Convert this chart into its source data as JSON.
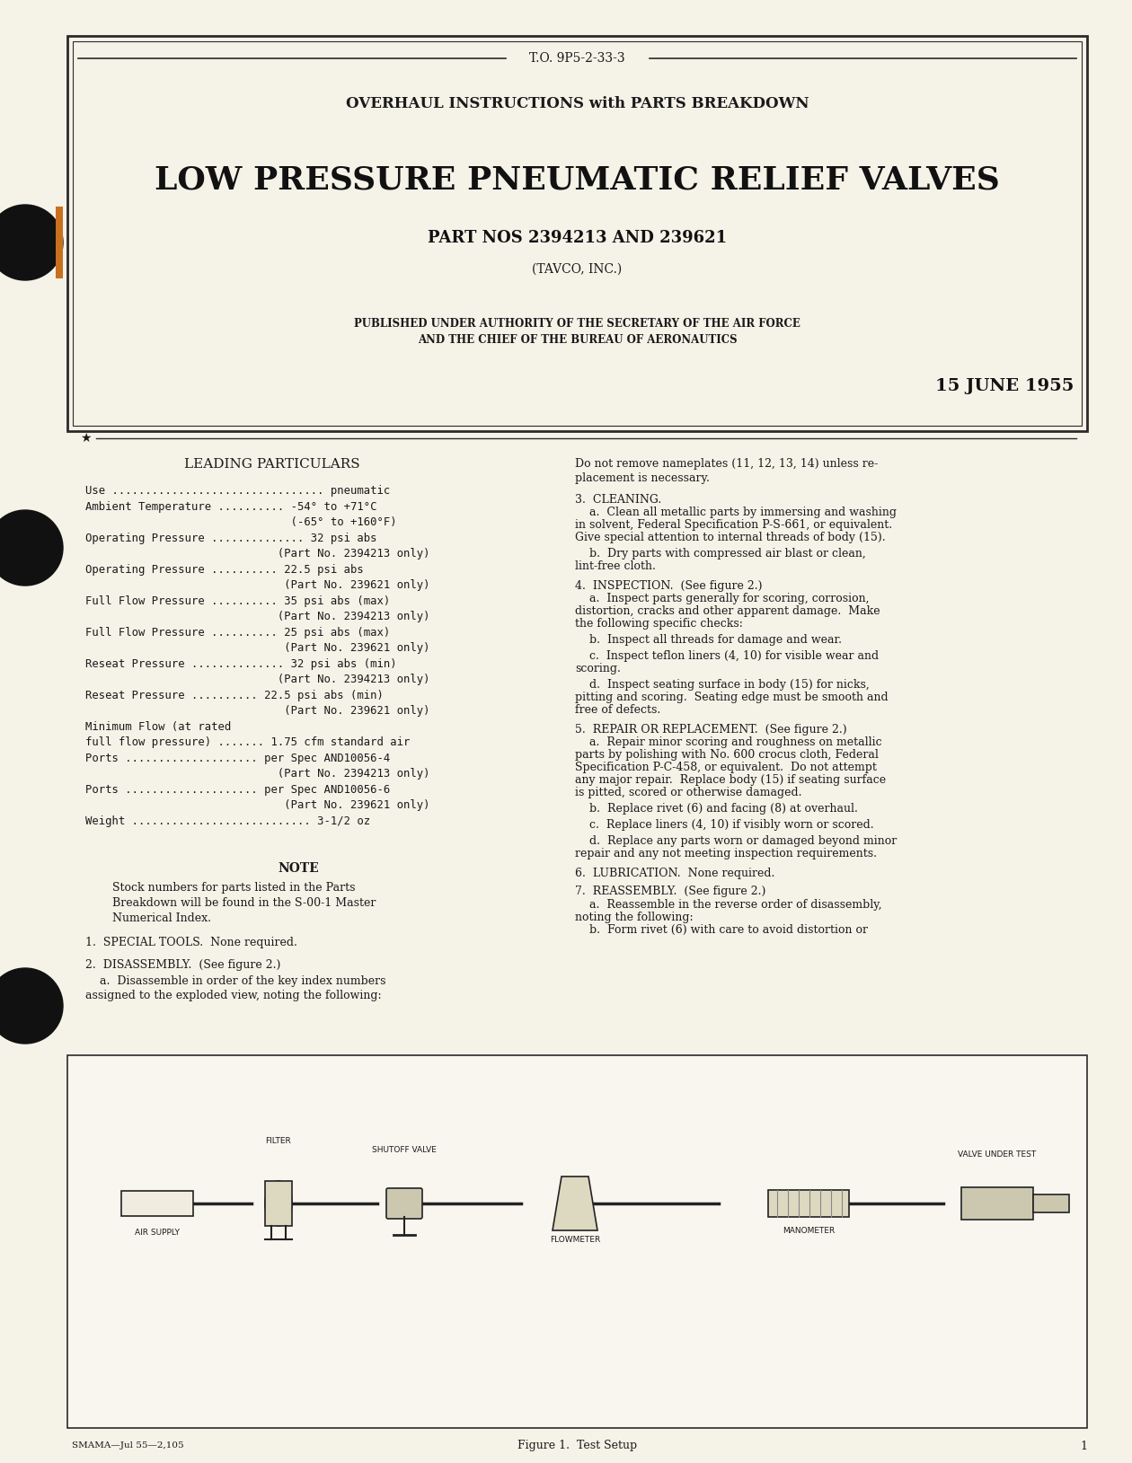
{
  "bg_color": "#f5f2e8",
  "page_bg": "#f5f2e8",
  "border_color": "#2a2a2a",
  "text_color": "#1a1a1a",
  "header_to_number": "T.O. 9P5-2-33-3",
  "header_subtitle": "OVERHAUL INSTRUCTIONS with PARTS BREAKDOWN",
  "main_title": "LOW PRESSURE PNEUMATIC RELIEF VALVES",
  "part_nos": "PART NOS 2394213 AND 239621",
  "manufacturer": "(TAVCO, INC.)",
  "authority_line1": "PUBLISHED UNDER AUTHORITY OF THE SECRETARY OF THE AIR FORCE",
  "authority_line2": "AND THE CHIEF OF THE BUREAU OF AERONAUTICS",
  "date": "15 JUNE 1955",
  "left_col_header": "LEADING PARTICULARS",
  "left_col_lines": [
    "Use ................................ pneumatic",
    "Ambient Temperature .......... -54° to +71°C",
    "                               (-65° to +160°F)",
    "Operating Pressure .............. 32 psi abs",
    "                             (Part No. 2394213 only)",
    "Operating Pressure .......... 22.5 psi abs",
    "                              (Part No. 239621 only)",
    "Full Flow Pressure .......... 35 psi abs (max)",
    "                             (Part No. 2394213 only)",
    "Full Flow Pressure .......... 25 psi abs (max)",
    "                              (Part No. 239621 only)",
    "Reseat Pressure .............. 32 psi abs (min)",
    "                             (Part No. 2394213 only)",
    "Reseat Pressure .......... 22.5 psi abs (min)",
    "                              (Part No. 239621 only)",
    "Minimum Flow (at rated",
    "full flow pressure) ....... 1.75 cfm standard air",
    "Ports .................... per Spec AND10056-4",
    "                             (Part No. 2394213 only)",
    "Ports .................... per Spec AND10056-6",
    "                              (Part No. 239621 only)",
    "Weight ........................... 3-1/2 oz"
  ],
  "note_header": "NOTE",
  "note_text": "Stock numbers for parts listed in the Parts\nBreakdown will be found in the S-00-1 Master\nNumerical Index.",
  "section1": "1.  SPECIAL TOOLS.  None required.",
  "section2_header": "2.  DISASSEMBLY.  (See figure 2.)",
  "section2_text": "    a.  Disassemble in order of the key index numbers\nassigned to the exploded view, noting the following:",
  "right_col_intro": "Do not remove nameplates (11, 12, 13, 14) unless re-\nplacement is necessary.",
  "section3_header": "3.  CLEANING.",
  "section3a": "    a.  Clean all metallic parts by immersing and washing\nin solvent, Federal Specification P-S-661, or equivalent.\nGive special attention to internal threads of body (15).",
  "section3b": "    b.  Dry parts with compressed air blast or clean,\nlint-free cloth.",
  "section4_header": "4.  INSPECTION.  (See figure 2.)",
  "section4a": "    a.  Inspect parts generally for scoring, corrosion,\ndistortion, cracks and other apparent damage.  Make\nthe following specific checks:",
  "section4b": "    b.  Inspect all threads for damage and wear.",
  "section4c": "    c.  Inspect teflon liners (4, 10) for visible wear and\nscoring.",
  "section4d": "    d.  Inspect seating surface in body (15) for nicks,\npitting and scoring.  Seating edge must be smooth and\nfree of defects.",
  "section5_header": "5.  REPAIR OR REPLACEMENT.  (See figure 2.)",
  "section5a": "    a.  Repair minor scoring and roughness on metallic\nparts by polishing with No. 600 crocus cloth, Federal\nSpecification P-C-458, or equivalent.  Do not attempt\nany major repair.  Replace body (15) if seating surface\nis pitted, scored or otherwise damaged.",
  "section5b": "    b.  Replace rivet (6) and facing (8) at overhaul.",
  "section5c": "    c.  Replace liners (4, 10) if visibly worn or scored.",
  "section5d": "    d.  Replace any parts worn or damaged beyond minor\nrepair and any not meeting inspection requirements.",
  "section6_header": "6.  LUBRICATION.  None required.",
  "section7_header": "7.  REASSEMBLY.  (See figure 2.)",
  "section7a": "    a.  Reassemble in the reverse order of disassembly,\nnoting the following:",
  "section7b": "    b.  Form rivet (6) with care to avoid distortion or",
  "footer_left": "SMAMA—Jul 55—2,105",
  "footer_fig": "Figure 1.  Test Setup",
  "footer_page": "1"
}
